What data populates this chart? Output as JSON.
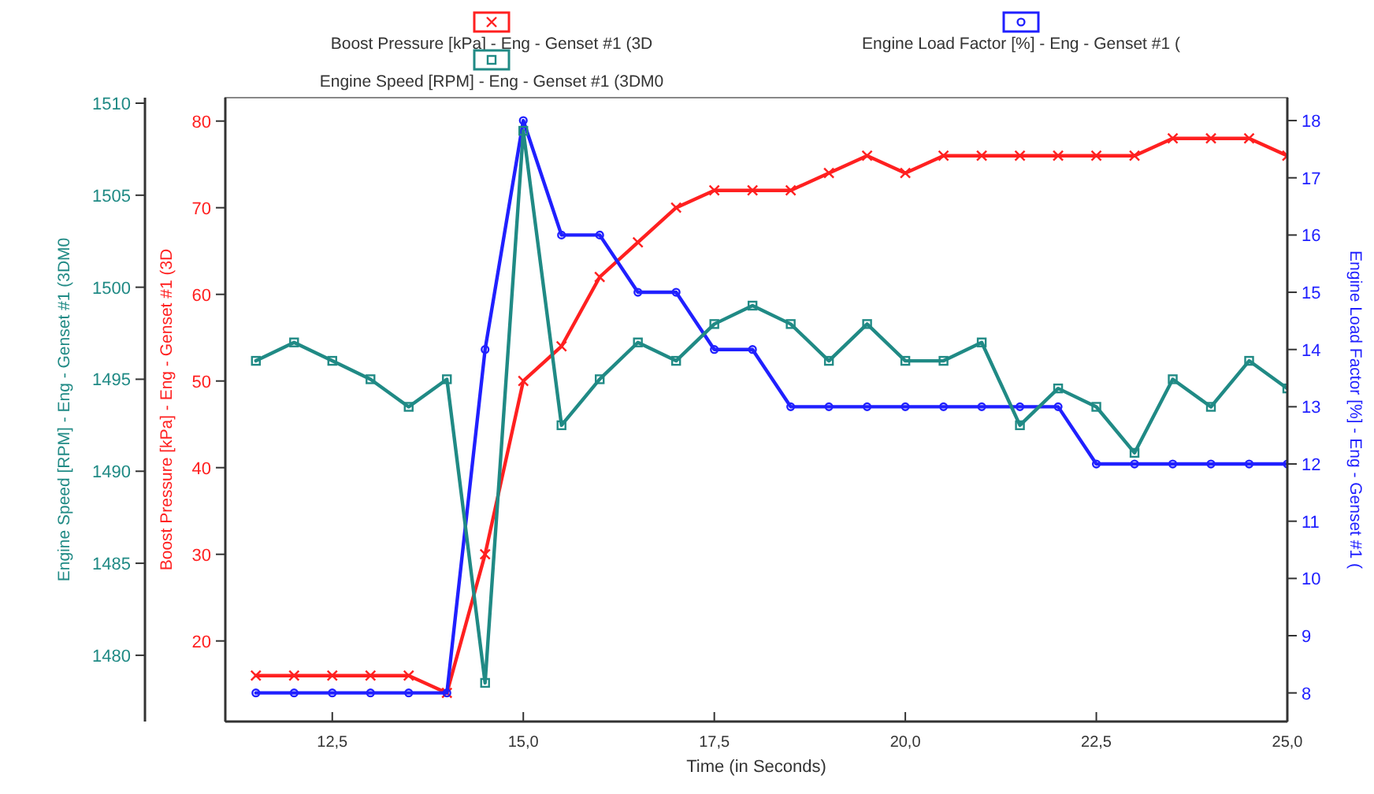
{
  "chart_data": {
    "type": "line",
    "xlabel": "Time (in Seconds)",
    "ylabel": "Boost Pressure [kPa] - Eng - Genset #1 (3D",
    "y2label": "Engine Load Factor [%] - Eng - Genset #1 (",
    "y3label": "Engine Speed [RPM] - Eng - Genset #1 (3DM0",
    "x": [
      11.5,
      12,
      12.5,
      13,
      13.5,
      14,
      14.5,
      15,
      15.5,
      16,
      16.5,
      17,
      17.5,
      18,
      18.5,
      19,
      19.5,
      20,
      20.5,
      21,
      21.5,
      22,
      22.5,
      23,
      23.5,
      24,
      24.5,
      25
    ],
    "xlim": [
      11.1,
      25
    ],
    "xticks": [
      {
        "value": 12.5,
        "label": "12,5"
      },
      {
        "value": 15,
        "label": "15,0"
      },
      {
        "value": 17.5,
        "label": "17,5"
      },
      {
        "value": 20,
        "label": "20,0"
      },
      {
        "value": 22.5,
        "label": "22,5"
      },
      {
        "value": 25,
        "label": "25,0"
      }
    ],
    "ylim": [
      10.7,
      82.7
    ],
    "yticks": [
      20,
      30,
      40,
      50,
      60,
      70,
      80
    ],
    "y2lim": [
      7.5,
      18.4
    ],
    "y2ticks": [
      8,
      9,
      10,
      11,
      12,
      13,
      14,
      15,
      16,
      17,
      18
    ],
    "y3lim": [
      1476.4,
      1510.3
    ],
    "y3ticks": [
      1480,
      1485,
      1490,
      1495,
      1500,
      1505,
      1510
    ],
    "grid": false,
    "legend": "top",
    "line_style": "solid",
    "series": [
      {
        "name": "Boost Pressure [kPa] - Eng - Genset #1 (3D",
        "color": "#ff2020",
        "marker": "cross",
        "values": [
          16,
          16,
          16,
          16,
          16,
          14,
          30,
          50,
          54,
          62,
          66,
          70,
          72,
          72,
          72,
          74,
          76,
          74,
          76,
          76,
          76,
          76,
          76,
          76,
          78,
          78,
          78,
          76
        ]
      },
      {
        "name": "Engine Load Factor [%] - Eng - Genset #1 (",
        "color": "#2020ff",
        "marker": "circle",
        "axis": "y2",
        "values": [
          8,
          8,
          8,
          8,
          8,
          8,
          14,
          18,
          16,
          16,
          15,
          15,
          14,
          14,
          13,
          13,
          13,
          13,
          13,
          13,
          13,
          13,
          12,
          12,
          12,
          12,
          12,
          12
        ]
      },
      {
        "name": "Engine Speed [RPM] - Eng - Genset #1 (3DM0",
        "color": "#208a85",
        "marker": "square",
        "axis": "y3",
        "values": [
          1496,
          1497,
          1496,
          1495,
          1493.5,
          1495,
          1478.5,
          1508.5,
          1492.5,
          1495,
          1497,
          1496,
          1498,
          1499,
          1498,
          1496,
          1498,
          1496,
          1496,
          1497,
          1492.5,
          1494.5,
          1493.5,
          1491,
          1495,
          1493.5,
          1496,
          1494.5
        ]
      }
    ]
  }
}
